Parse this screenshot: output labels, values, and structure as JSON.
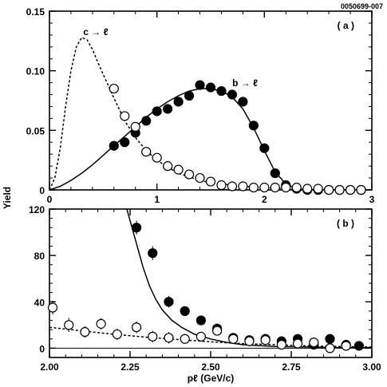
{
  "figure_id": "0050699-007",
  "yaxis_label": "Yield",
  "xaxis_label": "pℓ (GeV/c)",
  "chart_data": [
    {
      "type": "scatter",
      "panel_label": "( a )",
      "xlim": [
        0,
        3
      ],
      "ylim": [
        0,
        0.15
      ],
      "xticks": [
        0,
        1,
        2,
        3
      ],
      "xtick_labels": [
        "0",
        "1",
        "2",
        "3"
      ],
      "yticks": [
        0,
        0.05,
        0.1,
        0.15
      ],
      "ytick_labels": [
        "0",
        "0.05",
        "0.10",
        "0.15"
      ],
      "annotations": [
        {
          "text": "c → ℓ",
          "x": 0.43,
          "y": 0.13
        },
        {
          "text": "b → ℓ",
          "x": 1.82,
          "y": 0.087
        }
      ],
      "series": [
        {
          "marker": "filled-circle",
          "x": [
            0.6,
            0.7,
            0.8,
            0.9,
            1.0,
            1.1,
            1.2,
            1.3,
            1.4,
            1.5,
            1.6,
            1.7,
            1.8,
            1.9,
            2.0,
            2.1,
            2.2,
            2.3,
            2.4,
            2.5,
            2.6,
            2.7,
            2.8,
            2.9
          ],
          "y": [
            0.037,
            0.04,
            0.048,
            0.058,
            0.066,
            0.068,
            0.074,
            0.079,
            0.088,
            0.086,
            0.083,
            0.08,
            0.074,
            0.054,
            0.035,
            0.014,
            0.004,
            0.001,
            0.0,
            0.0,
            0.0,
            0.0,
            0.0,
            0.0
          ]
        },
        {
          "marker": "open-circle",
          "x": [
            0.6,
            0.7,
            0.8,
            0.9,
            1.0,
            1.1,
            1.2,
            1.3,
            1.4,
            1.5,
            1.6,
            1.7,
            1.8,
            1.9,
            2.0,
            2.1,
            2.2,
            2.3,
            2.4,
            2.5,
            2.6,
            2.7,
            2.8,
            2.9
          ],
          "y": [
            0.085,
            0.062,
            0.053,
            0.032,
            0.027,
            0.02,
            0.017,
            0.013,
            0.01,
            0.007,
            0.004,
            0.003,
            0.003,
            0.002,
            0.002,
            0.002,
            0.002,
            0.002,
            0.001,
            0.001,
            0.0,
            0.0,
            0.0,
            0.0
          ]
        },
        {
          "line": "dashed",
          "x": [
            0.0,
            0.05,
            0.1,
            0.15,
            0.2,
            0.25,
            0.3,
            0.35,
            0.4,
            0.45,
            0.5,
            0.55,
            0.6,
            0.7,
            0.8,
            0.9,
            1.0,
            1.1,
            1.2,
            1.3,
            1.4,
            1.5,
            1.6,
            1.8,
            2.0,
            2.2,
            2.5,
            3.0
          ],
          "y": [
            0.0,
            0.01,
            0.035,
            0.07,
            0.1,
            0.12,
            0.128,
            0.126,
            0.118,
            0.107,
            0.097,
            0.087,
            0.077,
            0.058,
            0.044,
            0.033,
            0.025,
            0.019,
            0.014,
            0.011,
            0.008,
            0.006,
            0.005,
            0.003,
            0.002,
            0.001,
            0.0,
            0.0
          ]
        },
        {
          "line": "solid",
          "x": [
            0.0,
            0.1,
            0.2,
            0.3,
            0.4,
            0.5,
            0.6,
            0.7,
            0.8,
            0.9,
            1.0,
            1.1,
            1.2,
            1.3,
            1.4,
            1.5,
            1.6,
            1.7,
            1.8,
            1.9,
            2.0,
            2.1,
            2.2,
            2.3,
            2.4,
            2.6,
            3.0
          ],
          "y": [
            0.0,
            0.003,
            0.008,
            0.014,
            0.021,
            0.029,
            0.037,
            0.045,
            0.053,
            0.061,
            0.068,
            0.074,
            0.079,
            0.083,
            0.085,
            0.085,
            0.083,
            0.078,
            0.068,
            0.052,
            0.033,
            0.015,
            0.005,
            0.001,
            0.0,
            0.0,
            0.0
          ]
        }
      ]
    },
    {
      "type": "scatter",
      "panel_label": "( b )",
      "xlim": [
        2.0,
        3.0
      ],
      "ylim": [
        -8,
        120
      ],
      "xticks": [
        2.0,
        2.25,
        2.5,
        2.75,
        3.0
      ],
      "xtick_labels": [
        "2.00",
        "2.25",
        "2.50",
        "2.75",
        "3.00"
      ],
      "yticks": [
        0,
        40,
        80,
        120
      ],
      "ytick_labels": [
        "0",
        "40",
        "80",
        "120"
      ],
      "series": [
        {
          "marker": "filled-circle",
          "x": [
            2.27,
            2.32,
            2.37,
            2.42,
            2.47,
            2.52,
            2.57,
            2.62,
            2.67,
            2.72,
            2.77,
            2.82,
            2.87,
            2.92,
            2.96
          ],
          "y": [
            104,
            82,
            40,
            32,
            24,
            17,
            9,
            7,
            8,
            6,
            8,
            3,
            8,
            3,
            2
          ],
          "yerr": [
            6,
            6,
            5,
            4,
            4,
            4,
            3,
            3,
            3,
            3,
            3,
            3,
            3,
            3,
            3
          ]
        },
        {
          "marker": "open-circle",
          "x": [
            2.01,
            2.06,
            2.11,
            2.16,
            2.21,
            2.27,
            2.32,
            2.37,
            2.42,
            2.47,
            2.52,
            2.57,
            2.62,
            2.67,
            2.72,
            2.77,
            2.82,
            2.87,
            2.92
          ],
          "y": [
            35,
            20,
            14,
            21,
            12,
            18,
            10,
            9,
            8,
            10,
            15,
            8,
            6,
            7,
            3,
            4,
            5,
            0,
            2
          ],
          "yerr": [
            6,
            6,
            5,
            5,
            5,
            5,
            5,
            5,
            4,
            4,
            4,
            4,
            3,
            3,
            3,
            3,
            3,
            3,
            3
          ]
        },
        {
          "line": "dashed",
          "x": [
            2.0,
            2.1,
            2.2,
            2.3,
            2.4,
            2.5,
            2.6,
            2.7,
            2.8,
            2.9,
            3.0
          ],
          "y": [
            18,
            15,
            12,
            9.5,
            7.5,
            5.5,
            4,
            3,
            2,
            1.5,
            1
          ]
        },
        {
          "line": "solid",
          "x": [
            2.23,
            2.25,
            2.27,
            2.29,
            2.31,
            2.33,
            2.35,
            2.38,
            2.41,
            2.45,
            2.5,
            2.55,
            2.6,
            2.7,
            2.8,
            2.9,
            3.0
          ],
          "y": [
            130,
            110,
            90,
            70,
            54,
            42,
            33,
            24,
            18,
            12,
            8,
            5,
            3,
            1.5,
            1,
            0.5,
            0.5
          ]
        }
      ]
    }
  ]
}
